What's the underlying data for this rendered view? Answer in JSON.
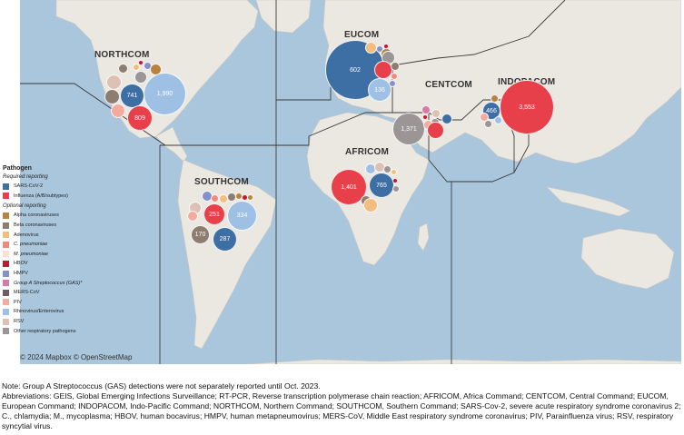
{
  "commands": [
    {
      "key": "northcom",
      "label": "NORTHCOM"
    },
    {
      "key": "eucom",
      "label": "EUCOM"
    },
    {
      "key": "centcom",
      "label": "CENTCOM"
    },
    {
      "key": "indopacom",
      "label": "INDOPACOM"
    },
    {
      "key": "africom",
      "label": "AFRICOM"
    },
    {
      "key": "southcom",
      "label": "SOUTHCOM"
    }
  ],
  "legend": {
    "title": "Pathogen",
    "required_label": "Required reporting",
    "optional_label": "Optional reporting",
    "required": [
      {
        "label": "SARS-CoV-2",
        "color": "#3d6fa5"
      },
      {
        "label": "Influenza (A/B/subtypes)",
        "color": "#e8404a"
      }
    ],
    "optional": [
      {
        "label": "Alpha coronaviruses",
        "color": "#b9833f",
        "italic": false
      },
      {
        "label": "Beta coronaviruses",
        "color": "#8c7d6e",
        "italic": false
      },
      {
        "label": "Adenovirus",
        "color": "#f2bd7e",
        "italic": false
      },
      {
        "label": "C. pneumoniae",
        "color": "#f08a7d",
        "italic": true
      },
      {
        "label": "M. pneumoniae",
        "color": "#fbe1d0",
        "italic": true
      },
      {
        "label": "HBOV",
        "color": "#c4162f",
        "italic": false
      },
      {
        "label": "HMPV",
        "color": "#8591c9",
        "italic": false
      },
      {
        "label": "Group A Streptococcus (GAS)*",
        "color": "#d97aa4",
        "italic": true
      },
      {
        "label": "MERS-CoV",
        "color": "#6e5a6b",
        "italic": false
      },
      {
        "label": "PIV",
        "color": "#f4ab9e",
        "italic": false
      },
      {
        "label": "Rhinovirus/Enterovirus",
        "color": "#9dc0e4",
        "italic": false
      },
      {
        "label": "RSV",
        "color": "#dfc0b4",
        "italic": false
      },
      {
        "label": "Other respiratory pathogens",
        "color": "#9b9596",
        "italic": false
      }
    ]
  },
  "bubbles": [
    {
      "region": "NORTHCOM",
      "pathogen": "SARS-CoV-2",
      "value": "741"
    },
    {
      "region": "NORTHCOM",
      "pathogen": "Rhinovirus/Enterovirus",
      "value": "1,990"
    },
    {
      "region": "NORTHCOM",
      "pathogen": "Influenza (A/B/subtypes)",
      "value": "809"
    },
    {
      "region": "EUCOM",
      "pathogen": "SARS-CoV-2",
      "value": "602"
    },
    {
      "region": "EUCOM",
      "pathogen": "Rhinovirus/Enterovirus",
      "value": "136"
    },
    {
      "region": "CENTCOM",
      "pathogen": "Other respiratory pathogens",
      "value": "1,371"
    },
    {
      "region": "INDOPACOM",
      "pathogen": "SARS-CoV-2",
      "value": "466"
    },
    {
      "region": "INDOPACOM",
      "pathogen": "Influenza (A/B/subtypes)",
      "value": "3,553"
    },
    {
      "region": "AFRICOM",
      "pathogen": "Influenza (A/B/subtypes)",
      "value": "1,401"
    },
    {
      "region": "AFRICOM",
      "pathogen": "SARS-CoV-2",
      "value": "765"
    },
    {
      "region": "SOUTHCOM",
      "pathogen": "Influenza (A/B/subtypes)",
      "value": "251"
    },
    {
      "region": "SOUTHCOM",
      "pathogen": "Rhinovirus/Enterovirus",
      "value": "334"
    },
    {
      "region": "SOUTHCOM",
      "pathogen": "Other respiratory pathogens",
      "value": "170"
    },
    {
      "region": "SOUTHCOM",
      "pathogen": "SARS-CoV-2",
      "value": "287"
    }
  ],
  "attribution": "© 2024 Mapbox © OpenStreetMap",
  "notes": {
    "line1": "Note: Group A Streptococcus (GAS) detections were not separately reported until Oct. 2023.",
    "line2": "Abbreviations: GEIS, Global Emerging Infections Surveillance; RT-PCR, Reverse transcription polymerase chain reaction; AFRICOM, Africa Command; CENTCOM, Central Command; EUCOM, European Command; INDOPACOM, Indo-Pacific Command; NORTHCOM, Northern Command; SOUTHCOM, Southern Command; SARS-Cov-2, severe acute respiratory syndrome coronavirus 2; C., chlamydia; M., mycoplasma; HBOV, human bocavirus; HMPV, human metapneumovirus; MERS-CoV, Middle East respiratory syndrome coronavirus; PIV, Parainfluenza virus; RSV, respiratory syncytial virus."
  }
}
